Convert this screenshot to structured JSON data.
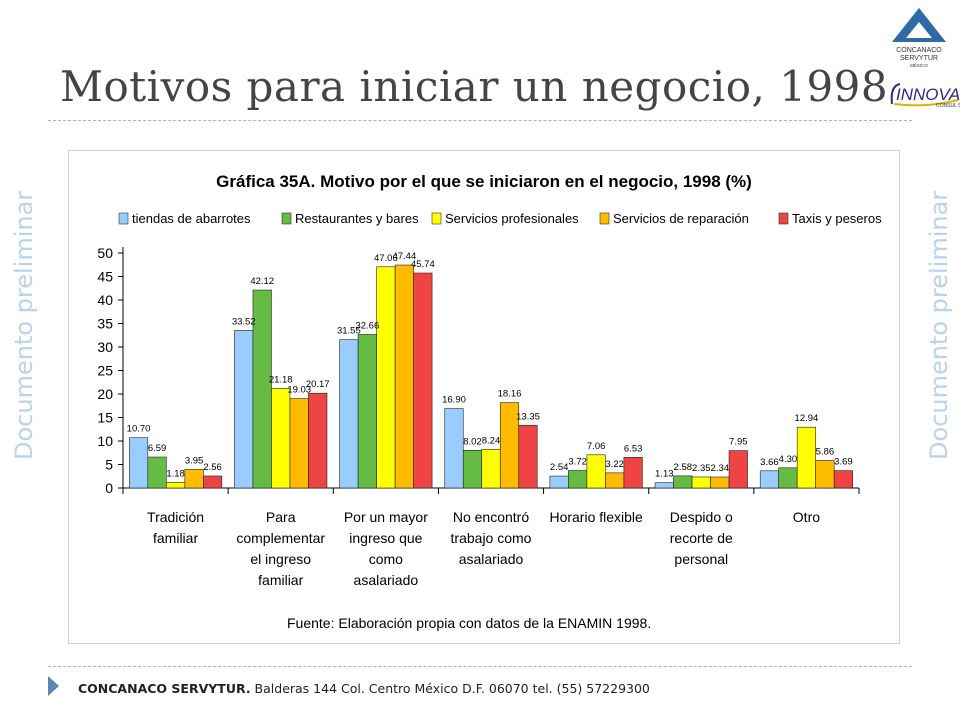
{
  "slide": {
    "title": "Motivos para iniciar un negocio, 1998",
    "watermark": "Documento preliminar",
    "logo_top_text": [
      "CONCANACO",
      "SERVYTUR",
      "MÉXICO"
    ],
    "logo_bottom_text": "INNOVA CONSUL S.C."
  },
  "footer": {
    "org": "CONCANACO SERVYTUR.",
    "address": " Balderas 144 Col. Centro México D.F. 06070 tel. (55) 57229300"
  },
  "colors": {
    "accent": "#5b86b5",
    "series": [
      "#99ccff",
      "#66bb44",
      "#ffff00",
      "#ffbb00",
      "#ee4444"
    ]
  },
  "chart_data": {
    "type": "bar",
    "title": "Gráfica 35A. Motivo por el que se iniciaron en el negocio, 1998 (%)",
    "source": "Fuente: Elaboración  propia con datos de la ENAMIN 1998.",
    "xlabel": "",
    "ylabel": "",
    "ylim": [
      0,
      50
    ],
    "yticks": [
      "0",
      "5",
      "10",
      "15",
      "20",
      "25",
      "30",
      "35",
      "40",
      "45",
      "50"
    ],
    "legend_position": "top",
    "grid": false,
    "categories": [
      [
        "Tradición",
        "familiar"
      ],
      [
        "Para",
        "complementar",
        "el ingreso",
        "familiar"
      ],
      [
        "Por un mayor",
        "ingreso que",
        "como",
        "asalariado"
      ],
      [
        "No encontró",
        "trabajo como",
        "asalariado"
      ],
      [
        "Horario flexible"
      ],
      [
        "Despido o",
        "recorte de",
        "personal"
      ],
      [
        "Otro"
      ]
    ],
    "series": [
      {
        "name": "tiendas de abarrotes",
        "values": [
          10.7,
          33.52,
          31.55,
          16.9,
          2.54,
          1.13,
          3.66
        ],
        "labels": [
          "10.70",
          "33.52",
          "31.55",
          "16.90",
          "2.54",
          "1.13",
          "3.66"
        ]
      },
      {
        "name": "Restaurantes y bares",
        "values": [
          6.59,
          42.12,
          32.66,
          8.02,
          3.72,
          2.58,
          4.3
        ],
        "labels": [
          "6.59",
          "42.12",
          "32.66",
          "8.02",
          "3.72",
          "2.58",
          "4.30"
        ]
      },
      {
        "name": "Servicios profesionales",
        "values": [
          1.18,
          21.18,
          47.06,
          8.24,
          7.06,
          2.35,
          12.94
        ],
        "labels": [
          "1.18",
          "21.18",
          "47.06",
          "8.24",
          "7.06",
          "2.35",
          "12.94"
        ]
      },
      {
        "name": "Servicios de reparación",
        "values": [
          3.95,
          19.03,
          47.44,
          18.16,
          3.22,
          2.34,
          5.86
        ],
        "labels": [
          "3.95",
          "19.03",
          "47.44",
          "18.16",
          "3.22",
          "2.34",
          "5.86"
        ]
      },
      {
        "name": "Taxis y peseros",
        "values": [
          2.56,
          20.17,
          45.74,
          13.35,
          6.53,
          7.95,
          3.69
        ],
        "labels": [
          "2.56",
          "20.17",
          "45.74",
          "13.35",
          "6.53",
          "7.95",
          "3.69"
        ]
      }
    ]
  }
}
